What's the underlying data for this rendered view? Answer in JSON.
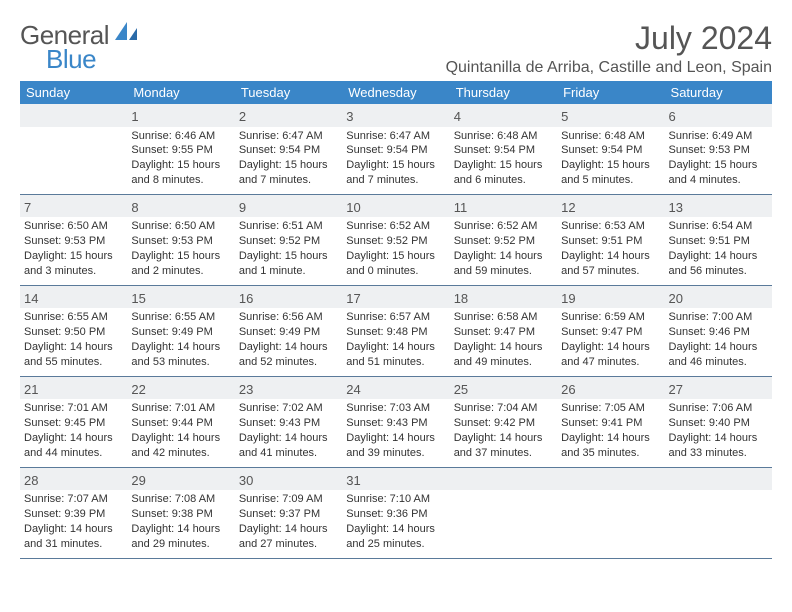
{
  "logo": {
    "text1": "General",
    "text2": "Blue"
  },
  "title": "July 2024",
  "location": "Quintanilla de Arriba, Castille and Leon, Spain",
  "colors": {
    "header_bg": "#3a86c8",
    "header_text": "#ffffff",
    "daynum_bg": "#eef0f2",
    "cell_border": "#5a7a9a",
    "body_text": "#333333",
    "title_text": "#555555",
    "logo_gray": "#555555",
    "logo_blue": "#3a86c8"
  },
  "weekdays": [
    "Sunday",
    "Monday",
    "Tuesday",
    "Wednesday",
    "Thursday",
    "Friday",
    "Saturday"
  ],
  "weeks": [
    {
      "nums": [
        "",
        "1",
        "2",
        "3",
        "4",
        "5",
        "6"
      ],
      "cells": [
        "",
        "Sunrise: 6:46 AM\nSunset: 9:55 PM\nDaylight: 15 hours and 8 minutes.",
        "Sunrise: 6:47 AM\nSunset: 9:54 PM\nDaylight: 15 hours and 7 minutes.",
        "Sunrise: 6:47 AM\nSunset: 9:54 PM\nDaylight: 15 hours and 7 minutes.",
        "Sunrise: 6:48 AM\nSunset: 9:54 PM\nDaylight: 15 hours and 6 minutes.",
        "Sunrise: 6:48 AM\nSunset: 9:54 PM\nDaylight: 15 hours and 5 minutes.",
        "Sunrise: 6:49 AM\nSunset: 9:53 PM\nDaylight: 15 hours and 4 minutes."
      ]
    },
    {
      "nums": [
        "7",
        "8",
        "9",
        "10",
        "11",
        "12",
        "13"
      ],
      "cells": [
        "Sunrise: 6:50 AM\nSunset: 9:53 PM\nDaylight: 15 hours and 3 minutes.",
        "Sunrise: 6:50 AM\nSunset: 9:53 PM\nDaylight: 15 hours and 2 minutes.",
        "Sunrise: 6:51 AM\nSunset: 9:52 PM\nDaylight: 15 hours and 1 minute.",
        "Sunrise: 6:52 AM\nSunset: 9:52 PM\nDaylight: 15 hours and 0 minutes.",
        "Sunrise: 6:52 AM\nSunset: 9:52 PM\nDaylight: 14 hours and 59 minutes.",
        "Sunrise: 6:53 AM\nSunset: 9:51 PM\nDaylight: 14 hours and 57 minutes.",
        "Sunrise: 6:54 AM\nSunset: 9:51 PM\nDaylight: 14 hours and 56 minutes."
      ]
    },
    {
      "nums": [
        "14",
        "15",
        "16",
        "17",
        "18",
        "19",
        "20"
      ],
      "cells": [
        "Sunrise: 6:55 AM\nSunset: 9:50 PM\nDaylight: 14 hours and 55 minutes.",
        "Sunrise: 6:55 AM\nSunset: 9:49 PM\nDaylight: 14 hours and 53 minutes.",
        "Sunrise: 6:56 AM\nSunset: 9:49 PM\nDaylight: 14 hours and 52 minutes.",
        "Sunrise: 6:57 AM\nSunset: 9:48 PM\nDaylight: 14 hours and 51 minutes.",
        "Sunrise: 6:58 AM\nSunset: 9:47 PM\nDaylight: 14 hours and 49 minutes.",
        "Sunrise: 6:59 AM\nSunset: 9:47 PM\nDaylight: 14 hours and 47 minutes.",
        "Sunrise: 7:00 AM\nSunset: 9:46 PM\nDaylight: 14 hours and 46 minutes."
      ]
    },
    {
      "nums": [
        "21",
        "22",
        "23",
        "24",
        "25",
        "26",
        "27"
      ],
      "cells": [
        "Sunrise: 7:01 AM\nSunset: 9:45 PM\nDaylight: 14 hours and 44 minutes.",
        "Sunrise: 7:01 AM\nSunset: 9:44 PM\nDaylight: 14 hours and 42 minutes.",
        "Sunrise: 7:02 AM\nSunset: 9:43 PM\nDaylight: 14 hours and 41 minutes.",
        "Sunrise: 7:03 AM\nSunset: 9:43 PM\nDaylight: 14 hours and 39 minutes.",
        "Sunrise: 7:04 AM\nSunset: 9:42 PM\nDaylight: 14 hours and 37 minutes.",
        "Sunrise: 7:05 AM\nSunset: 9:41 PM\nDaylight: 14 hours and 35 minutes.",
        "Sunrise: 7:06 AM\nSunset: 9:40 PM\nDaylight: 14 hours and 33 minutes."
      ]
    },
    {
      "nums": [
        "28",
        "29",
        "30",
        "31",
        "",
        "",
        ""
      ],
      "cells": [
        "Sunrise: 7:07 AM\nSunset: 9:39 PM\nDaylight: 14 hours and 31 minutes.",
        "Sunrise: 7:08 AM\nSunset: 9:38 PM\nDaylight: 14 hours and 29 minutes.",
        "Sunrise: 7:09 AM\nSunset: 9:37 PM\nDaylight: 14 hours and 27 minutes.",
        "Sunrise: 7:10 AM\nSunset: 9:36 PM\nDaylight: 14 hours and 25 minutes.",
        "",
        "",
        ""
      ]
    }
  ]
}
